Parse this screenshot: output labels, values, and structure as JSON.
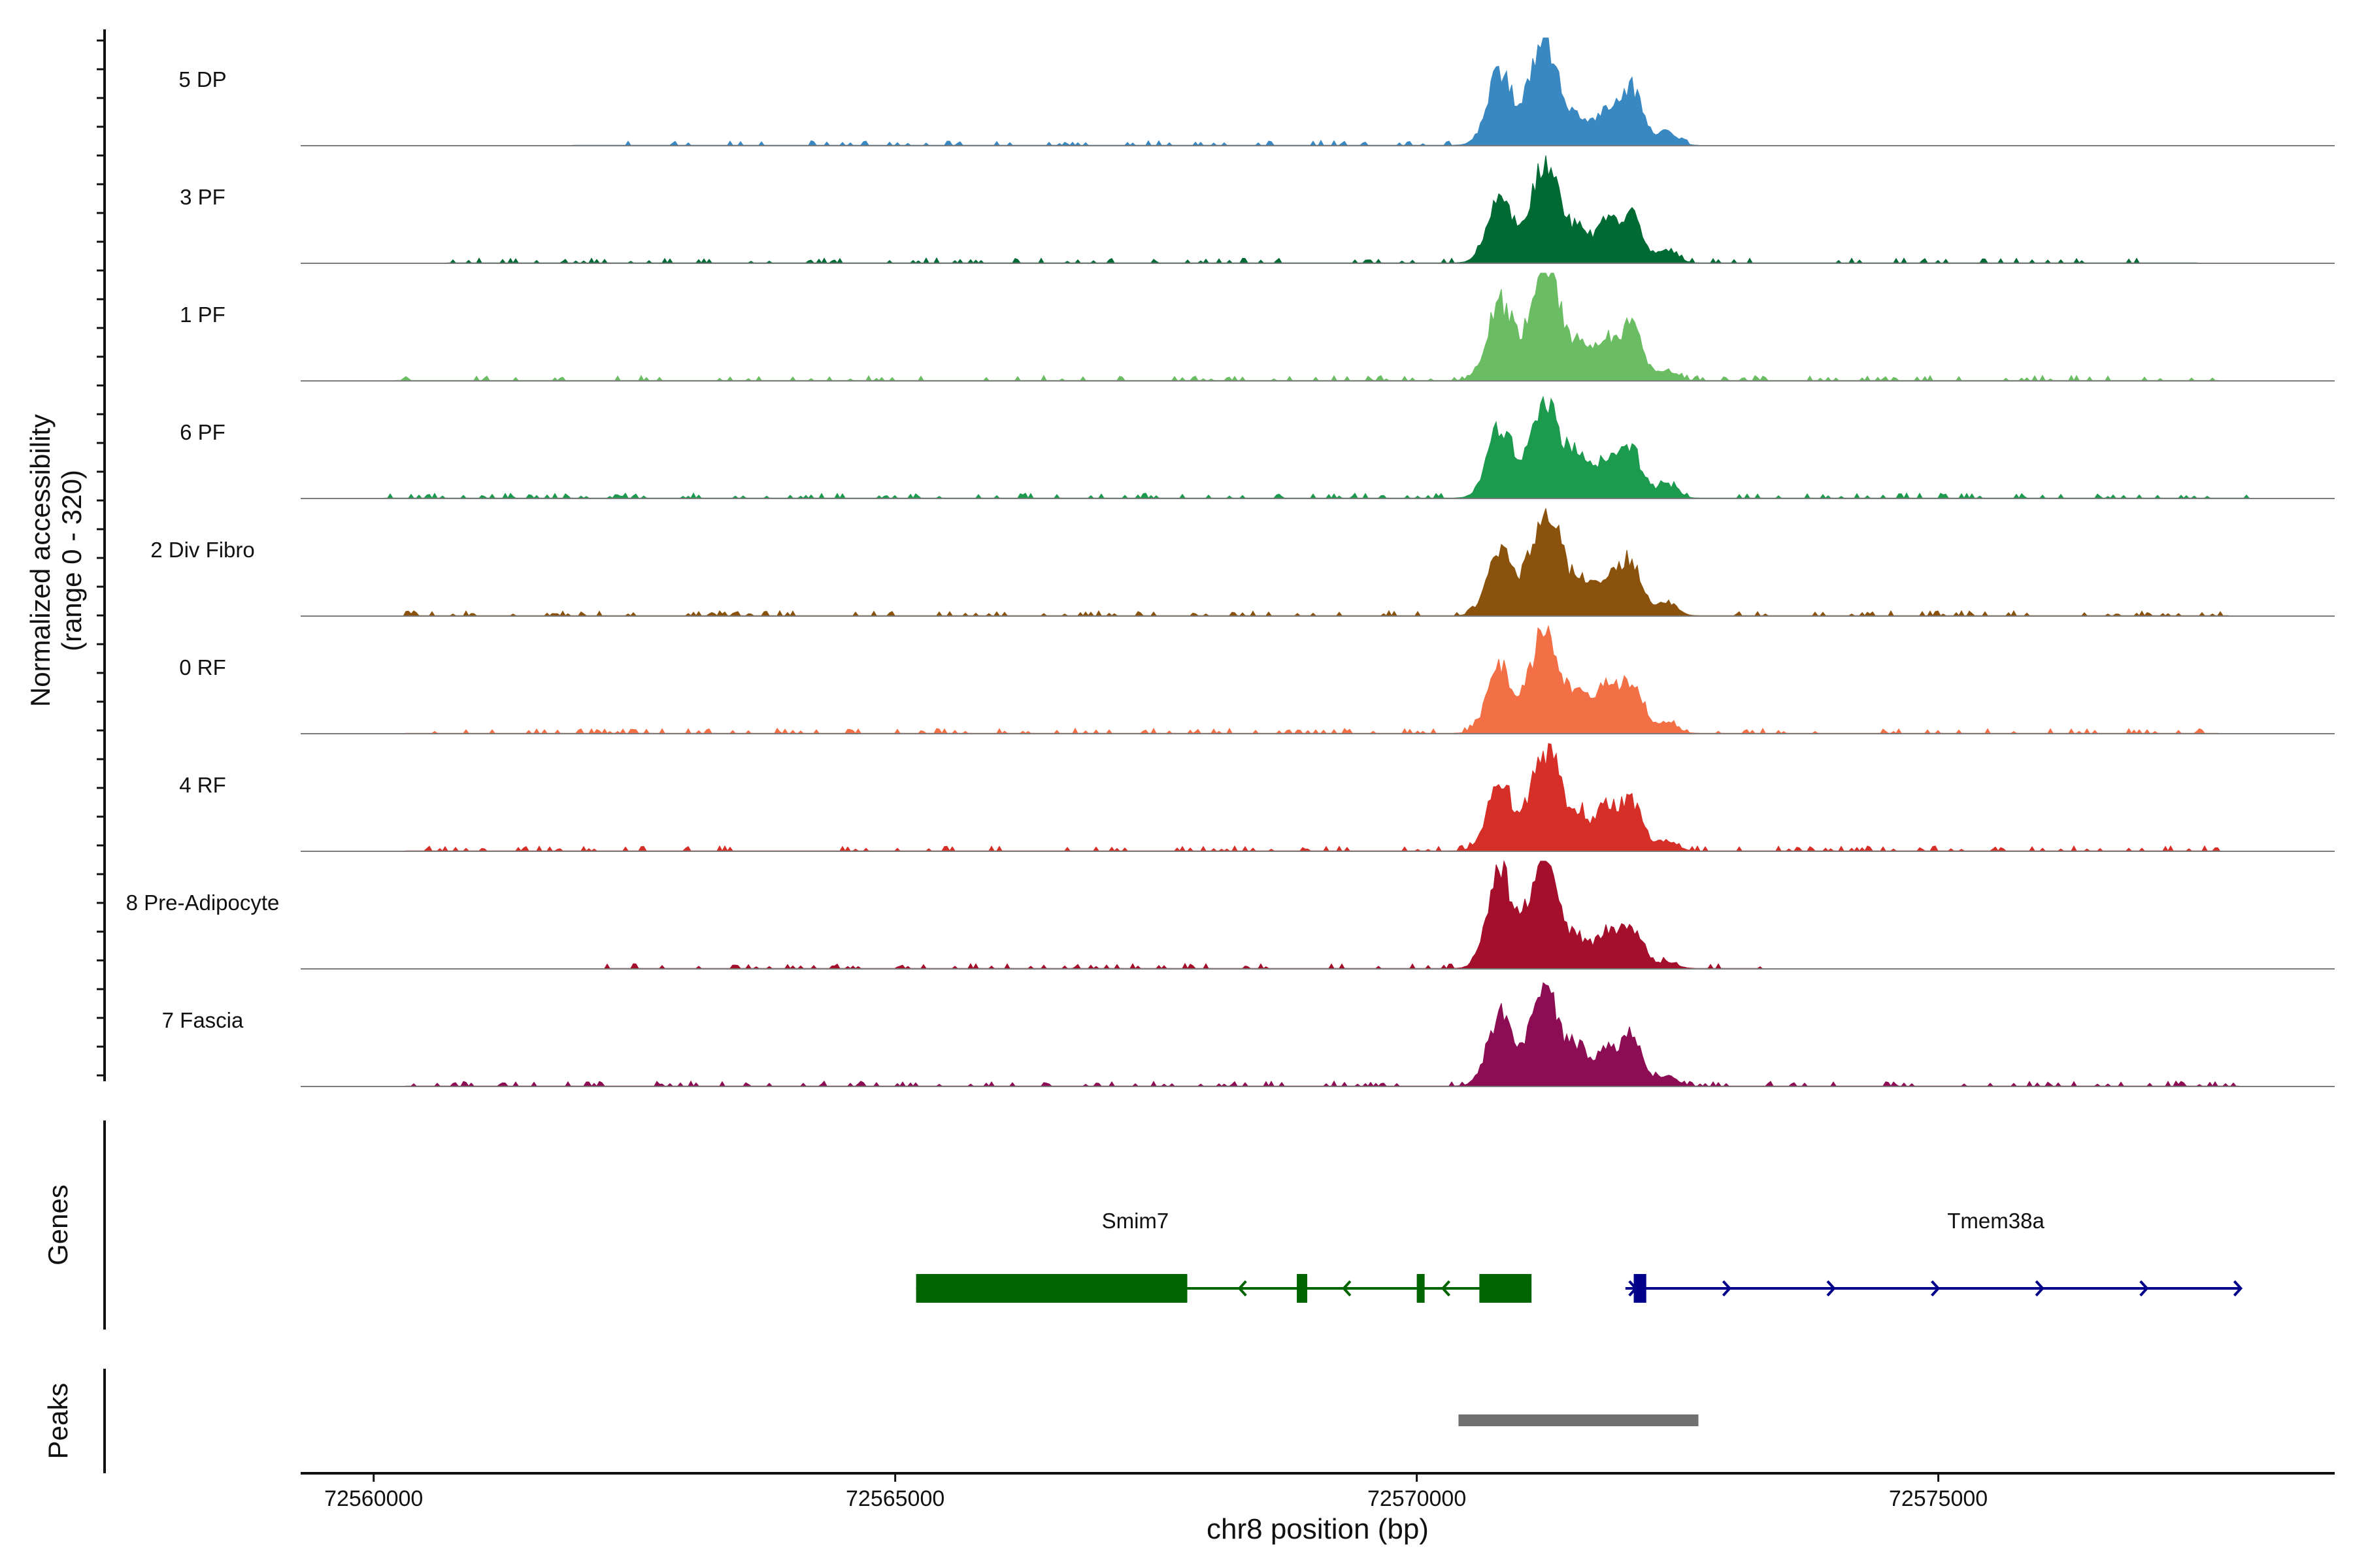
{
  "chart_data": {
    "type": "area",
    "title": "",
    "ylabel": "Normalized accessibility",
    "ylabel_range": "(range 0 - 320)",
    "ylim": [
      0,
      320
    ],
    "xlabel": "chr8 position (bp)",
    "xlim": [
      72559300,
      72578800
    ],
    "x_ticks": [
      72560000,
      72565000,
      72570000,
      72575000
    ],
    "x_tick_labels": [
      "72560000",
      "72565000",
      "72570000",
      "72575000"
    ],
    "peak_profile": [
      {
        "pos": 72570800,
        "width": 120
      },
      {
        "pos": 72571150,
        "width": 110
      },
      {
        "pos": 72571300,
        "width": 110
      },
      {
        "pos": 72571550,
        "width": 90
      },
      {
        "pos": 72571800,
        "width": 100
      },
      {
        "pos": 72572050,
        "width": 110
      },
      {
        "pos": 72572400,
        "width": 90
      }
    ],
    "tracks": [
      {
        "name": "5 DP",
        "color": "#3a88c2",
        "heights": [
          210,
          190,
          200,
          70,
          90,
          170,
          40
        ],
        "bg_start": 72561900,
        "bg_end": 72572700
      },
      {
        "name": "3 PF",
        "color": "#006a35",
        "heights": [
          180,
          160,
          210,
          90,
          110,
          140,
          40
        ],
        "bg_start": 72560700,
        "bg_end": 72577500
      },
      {
        "name": "1 PF",
        "color": "#6abd62",
        "heights": [
          230,
          200,
          210,
          100,
          110,
          160,
          30
        ],
        "bg_start": 72560200,
        "bg_end": 72577700
      },
      {
        "name": "6 PF",
        "color": "#1c9a4e",
        "heights": [
          210,
          170,
          180,
          130,
          110,
          140,
          40
        ],
        "bg_start": 72560100,
        "bg_end": 72578000
      },
      {
        "name": "2 Div Fibro",
        "color": "#8b520d",
        "heights": [
          200,
          180,
          230,
          100,
          110,
          160,
          40
        ],
        "bg_start": 72560300,
        "bg_end": 72577800
      },
      {
        "name": "0 RF",
        "color": "#f36f45",
        "heights": [
          200,
          170,
          210,
          100,
          130,
          150,
          30
        ],
        "bg_start": 72560300,
        "bg_end": 72577700
      },
      {
        "name": "4 RF",
        "color": "#d62f27",
        "heights": [
          200,
          160,
          220,
          100,
          120,
          150,
          30
        ],
        "bg_start": 72560300,
        "bg_end": 72577700
      },
      {
        "name": "8 Pre-Adipocyte",
        "color": "#a40f2c",
        "heights": [
          280,
          220,
          200,
          80,
          100,
          120,
          20
        ],
        "bg_start": 72562200,
        "bg_end": 72573300
      },
      {
        "name": "7 Fascia",
        "color": "#8c0d53",
        "heights": [
          210,
          170,
          180,
          110,
          100,
          150,
          30
        ],
        "bg_start": 72560300,
        "bg_end": 72577900
      }
    ]
  },
  "genes": {
    "label": "Genes",
    "items": [
      {
        "name": "Smim7",
        "color": "#006400",
        "strand": "-",
        "start": 72565200,
        "end": 72570900,
        "label_pos": 72566800,
        "exons": [
          [
            72565200,
            72567800
          ],
          [
            72568850,
            72568950
          ],
          [
            72570000,
            72570060
          ],
          [
            72570600,
            72571100
          ]
        ],
        "arrows": [
          72568300,
          72569300,
          72570250
        ]
      },
      {
        "name": "Tmem38a",
        "color": "#00008b",
        "strand": "+",
        "start": 72572000,
        "end": 72577900,
        "label_pos": 72575050,
        "exons": [
          [
            72572080,
            72572200
          ]
        ],
        "arrows": [
          72572100,
          72573000,
          72574000,
          72575000,
          72576000,
          72577000,
          72577900
        ]
      }
    ]
  },
  "peaks": {
    "label": "Peaks",
    "color": "#707070",
    "regions": [
      [
        72570400,
        72572700
      ]
    ]
  }
}
